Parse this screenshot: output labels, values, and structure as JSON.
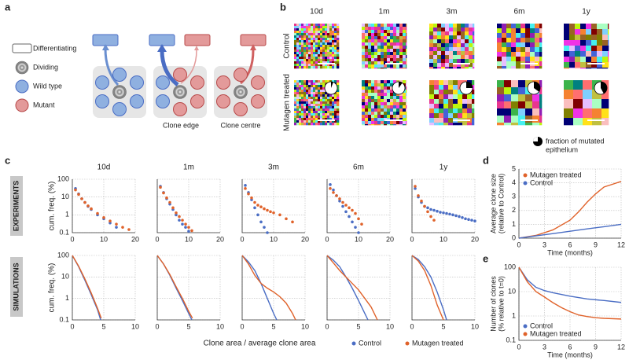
{
  "panel_a": {
    "label": "a",
    "legend": [
      "Differentiating",
      "Dividing",
      "Wild type",
      "Mutant"
    ],
    "captions": [
      "Clone edge",
      "Clone centre"
    ]
  },
  "panel_b": {
    "label": "b",
    "columns": [
      "10d",
      "1m",
      "3m",
      "6m",
      "1y"
    ],
    "rows": [
      "Control",
      "Mutagen treated"
    ],
    "fraction_mutated": [
      0.06,
      0.1,
      0.25,
      0.35,
      0.42
    ],
    "legend_lines": [
      "fraction of mutated",
      "epithelium"
    ]
  },
  "panel_c": {
    "label": "c",
    "row_labels": [
      "EXPERIMENTS",
      "SIMULATIONS"
    ],
    "x_label": "Clone area / average clone area"
  },
  "chart_data": [
    {
      "type": "scatter",
      "title": "10d",
      "y_label": "cum. freq. (%)",
      "log_y": true,
      "xlim": [
        0,
        20
      ],
      "ylim": [
        0.1,
        100
      ],
      "xticks": [
        0,
        10,
        20
      ],
      "yticks": [
        0.1,
        1,
        10,
        100
      ],
      "ytick_labels": true,
      "series": [
        {
          "name": "Control",
          "color": "#4a6dc4",
          "x": [
            1,
            2,
            3,
            4,
            5,
            6,
            8,
            10,
            12,
            14
          ],
          "values": [
            30,
            15,
            8,
            5,
            3,
            2,
            1,
            0.6,
            0.35,
            0.2
          ]
        },
        {
          "name": "Mutagen treated",
          "color": "#e0622a",
          "x": [
            1,
            2,
            3,
            4,
            5,
            6,
            8,
            10,
            12,
            14,
            16,
            18
          ],
          "values": [
            25,
            14,
            8,
            5,
            3.2,
            2.2,
            1.2,
            0.7,
            0.45,
            0.3,
            0.2,
            0.15
          ]
        }
      ]
    },
    {
      "type": "scatter",
      "title": "1m",
      "log_y": true,
      "xlim": [
        0,
        20
      ],
      "ylim": [
        0.1,
        100
      ],
      "xticks": [
        0,
        10,
        20
      ],
      "yticks": [
        0.1,
        1,
        10,
        100
      ],
      "ytick_labels": false,
      "series": [
        {
          "name": "Control",
          "color": "#4a6dc4",
          "x": [
            1,
            2,
            3,
            4,
            5,
            6,
            7,
            8,
            9,
            10
          ],
          "values": [
            40,
            18,
            8,
            4,
            2,
            1,
            0.5,
            0.3,
            0.2,
            0.12
          ]
        },
        {
          "name": "Mutagen treated",
          "color": "#e0622a",
          "x": [
            1,
            2,
            3,
            4,
            5,
            6,
            7,
            8,
            9,
            10,
            11
          ],
          "values": [
            35,
            17,
            9,
            5,
            2.5,
            1.3,
            0.8,
            0.5,
            0.3,
            0.2,
            0.13
          ]
        }
      ]
    },
    {
      "type": "scatter",
      "title": "3m",
      "log_y": true,
      "xlim": [
        0,
        20
      ],
      "ylim": [
        0.1,
        100
      ],
      "xticks": [
        0,
        10,
        20
      ],
      "yticks": [
        0.1,
        1,
        10,
        100
      ],
      "ytick_labels": false,
      "series": [
        {
          "name": "Control",
          "color": "#4a6dc4",
          "x": [
            1,
            2,
            3,
            4,
            5,
            6,
            7,
            8
          ],
          "values": [
            45,
            18,
            7,
            2.5,
            1,
            0.4,
            0.2,
            0.1
          ]
        },
        {
          "name": "Mutagen treated",
          "color": "#e0622a",
          "x": [
            1,
            2,
            3,
            4,
            5,
            6,
            7,
            8,
            9,
            10,
            12,
            14,
            16
          ],
          "values": [
            30,
            15,
            9,
            5,
            3.5,
            2.8,
            2.2,
            1.8,
            1.5,
            1.3,
            1,
            0.6,
            0.4
          ]
        }
      ]
    },
    {
      "type": "scatter",
      "title": "6m",
      "log_y": true,
      "xlim": [
        0,
        20
      ],
      "ylim": [
        0.1,
        100
      ],
      "xticks": [
        0,
        10,
        20
      ],
      "yticks": [
        0.1,
        1,
        10,
        100
      ],
      "ytick_labels": false,
      "series": [
        {
          "name": "Control",
          "color": "#4a6dc4",
          "x": [
            1,
            2,
            3,
            4,
            5,
            6,
            7,
            8,
            9,
            10
          ],
          "values": [
            50,
            25,
            12,
            6,
            3,
            1.5,
            0.8,
            0.4,
            0.2,
            0.1
          ]
        },
        {
          "name": "Mutagen treated",
          "color": "#e0622a",
          "x": [
            1,
            2,
            3,
            4,
            5,
            6,
            7,
            8,
            9,
            10,
            11
          ],
          "values": [
            30,
            18,
            12,
            8,
            5,
            3.5,
            2.5,
            1.8,
            1.2,
            0.6,
            0.3
          ]
        }
      ]
    },
    {
      "type": "scatter",
      "title": "1y",
      "log_y": true,
      "xlim": [
        0,
        20
      ],
      "ylim": [
        0.1,
        100
      ],
      "xticks": [
        0,
        10,
        20
      ],
      "yticks": [
        0.1,
        1,
        10,
        100
      ],
      "ytick_labels": false,
      "series": [
        {
          "name": "Control",
          "color": "#4a6dc4",
          "x": [
            1,
            2,
            3,
            4,
            5,
            6,
            7,
            8,
            9,
            10,
            11,
            12,
            13,
            14,
            15,
            16,
            17,
            18,
            19,
            20
          ],
          "values": [
            30,
            10,
            5,
            3,
            2.5,
            2,
            1.8,
            1.6,
            1.4,
            1.3,
            1.2,
            1.1,
            1,
            0.9,
            0.8,
            0.7,
            0.6,
            0.55,
            0.5,
            0.45
          ]
        },
        {
          "name": "Mutagen treated",
          "color": "#e0622a",
          "x": [
            1,
            2,
            3,
            4,
            5,
            6,
            7
          ],
          "values": [
            40,
            12,
            6,
            3,
            1.5,
            0.8,
            0.5
          ]
        }
      ]
    },
    {
      "type": "line",
      "y_label": "cum. freq. (%)",
      "log_y": true,
      "xlim": [
        0,
        10
      ],
      "ylim": [
        0.1,
        100
      ],
      "xticks": [
        0,
        5,
        10
      ],
      "yticks": [
        0.1,
        1,
        10,
        100
      ],
      "ytick_labels": true,
      "series": [
        {
          "name": "Control",
          "color": "#4a6dc4",
          "x": [
            0,
            1,
            2,
            3,
            4,
            4.5
          ],
          "values": [
            100,
            30,
            7,
            1.5,
            0.3,
            0.1
          ]
        },
        {
          "name": "Mutagen treated",
          "color": "#e0622a",
          "x": [
            0,
            1,
            2,
            3,
            4,
            4.6
          ],
          "values": [
            100,
            32,
            8,
            1.8,
            0.35,
            0.12
          ]
        }
      ]
    },
    {
      "type": "line",
      "log_y": true,
      "xlim": [
        0,
        10
      ],
      "ylim": [
        0.1,
        100
      ],
      "xticks": [
        0,
        5,
        10
      ],
      "yticks": [
        0.1,
        1,
        10,
        100
      ],
      "ytick_labels": false,
      "series": [
        {
          "name": "Control",
          "color": "#4a6dc4",
          "x": [
            0,
            1,
            2,
            3,
            4,
            5,
            5.5
          ],
          "values": [
            100,
            40,
            12,
            3,
            0.8,
            0.2,
            0.1
          ]
        },
        {
          "name": "Mutagen treated",
          "color": "#e0622a",
          "x": [
            0,
            1,
            2,
            3,
            4,
            5,
            5.6
          ],
          "values": [
            100,
            40,
            13,
            3.5,
            1,
            0.25,
            0.12
          ]
        }
      ]
    },
    {
      "type": "line",
      "log_y": true,
      "xlim": [
        0,
        10
      ],
      "ylim": [
        0.1,
        100
      ],
      "xticks": [
        0,
        5,
        10
      ],
      "yticks": [
        0.1,
        1,
        10,
        100
      ],
      "ytick_labels": false,
      "series": [
        {
          "name": "Control",
          "color": "#4a6dc4",
          "x": [
            0,
            1,
            2,
            3,
            4,
            5,
            5.5
          ],
          "values": [
            100,
            50,
            20,
            5,
            1,
            0.2,
            0.1
          ]
        },
        {
          "name": "Mutagen treated",
          "color": "#e0622a",
          "x": [
            0,
            1,
            2,
            3,
            4,
            5,
            6,
            7,
            8,
            8.5
          ],
          "values": [
            100,
            40,
            12,
            5,
            3,
            2,
            1.2,
            0.6,
            0.2,
            0.1
          ]
        }
      ]
    },
    {
      "type": "line",
      "log_y": true,
      "xlim": [
        0,
        10
      ],
      "ylim": [
        0.1,
        100
      ],
      "xticks": [
        0,
        5,
        10
      ],
      "yticks": [
        0.1,
        1,
        10,
        100
      ],
      "ytick_labels": false,
      "series": [
        {
          "name": "Control",
          "color": "#4a6dc4",
          "x": [
            0,
            1,
            2,
            3,
            4,
            5,
            6,
            6.5
          ],
          "values": [
            100,
            60,
            30,
            10,
            3,
            0.8,
            0.2,
            0.1
          ]
        },
        {
          "name": "Mutagen treated",
          "color": "#e0622a",
          "x": [
            0,
            1,
            2,
            3,
            4,
            5,
            6,
            7,
            8
          ],
          "values": [
            100,
            45,
            20,
            10,
            5,
            2.5,
            1,
            0.4,
            0.1
          ]
        }
      ]
    },
    {
      "type": "line",
      "log_y": true,
      "xlim": [
        0,
        10
      ],
      "ylim": [
        0.1,
        100
      ],
      "xticks": [
        0,
        5,
        10
      ],
      "yticks": [
        0.1,
        1,
        10,
        100
      ],
      "ytick_labels": false,
      "series": [
        {
          "name": "Control",
          "color": "#4a6dc4",
          "x": [
            0,
            1,
            2,
            3,
            4,
            5,
            5.5
          ],
          "values": [
            100,
            65,
            30,
            10,
            2,
            0.3,
            0.1
          ]
        },
        {
          "name": "Mutagen treated",
          "color": "#e0622a",
          "x": [
            0,
            1,
            2,
            3,
            4,
            5
          ],
          "values": [
            100,
            55,
            20,
            4,
            0.5,
            0.1
          ]
        }
      ]
    },
    {
      "type": "line",
      "panel": "d",
      "y_label": [
        "Average clone size",
        "(relative to Control)"
      ],
      "x_label": "Time (months)",
      "log_y": false,
      "xlim": [
        0,
        12
      ],
      "ylim": [
        0,
        5
      ],
      "xticks": [
        0,
        3,
        6,
        9,
        12
      ],
      "yticks": [
        0,
        1,
        2,
        3,
        4,
        5
      ],
      "ytick_labels": true,
      "legend": "upper left",
      "series": [
        {
          "name": "Mutagen treated",
          "color": "#e0622a",
          "x": [
            0,
            2,
            4,
            6,
            7,
            8,
            9,
            10,
            11,
            12
          ],
          "values": [
            0,
            0.2,
            0.6,
            1.3,
            1.9,
            2.6,
            3.2,
            3.7,
            3.9,
            4.1
          ]
        },
        {
          "name": "Control",
          "color": "#4a6dc4",
          "x": [
            0,
            2,
            4,
            6,
            8,
            10,
            12
          ],
          "values": [
            0,
            0.17,
            0.33,
            0.5,
            0.67,
            0.83,
            1
          ]
        }
      ]
    },
    {
      "type": "line",
      "panel": "e",
      "y_label": [
        "Number of clones",
        "(% relative to t=0)"
      ],
      "x_label": "Time (months)",
      "log_y": true,
      "xlim": [
        0,
        12
      ],
      "ylim": [
        0.1,
        100
      ],
      "xticks": [
        0,
        3,
        6,
        9,
        12
      ],
      "yticks": [
        0.1,
        1,
        10,
        100
      ],
      "ytick_labels": true,
      "legend": "lower left",
      "series": [
        {
          "name": "Control",
          "color": "#4a6dc4",
          "x": [
            0,
            1,
            2,
            3,
            4,
            6,
            8,
            10,
            12
          ],
          "values": [
            100,
            30,
            15,
            11,
            9,
            6.5,
            5,
            4.3,
            3.6
          ]
        },
        {
          "name": "Mutagen treated",
          "color": "#e0622a",
          "x": [
            0,
            1,
            2,
            3,
            4,
            5,
            6,
            7,
            8,
            9,
            10,
            12
          ],
          "values": [
            100,
            25,
            10,
            6,
            3.5,
            2.2,
            1.5,
            1.1,
            0.95,
            0.85,
            0.8,
            0.75
          ]
        }
      ]
    }
  ]
}
